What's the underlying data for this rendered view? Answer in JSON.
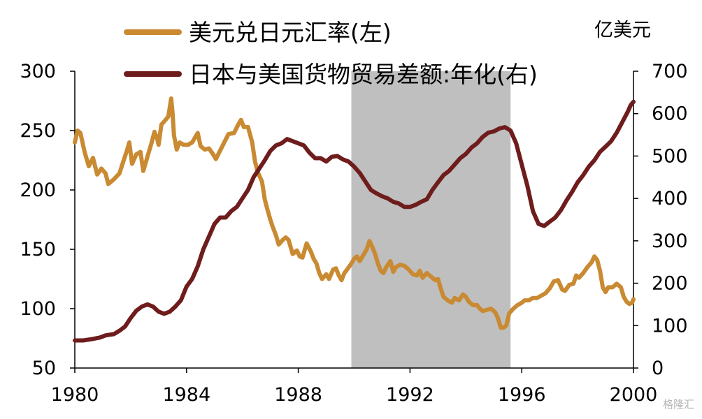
{
  "chart_data": {
    "type": "line",
    "title": "",
    "xlabel": "",
    "xlim": [
      1980,
      2000
    ],
    "x_ticks": [
      "1980",
      "1984",
      "1988",
      "1992",
      "1996",
      "2000"
    ],
    "left_axis": {
      "label": "",
      "ylim": [
        50,
        300
      ],
      "ticks": [
        "300",
        "250",
        "200",
        "150",
        "100",
        "50"
      ]
    },
    "right_axis": {
      "label": "亿美元",
      "ylim": [
        0,
        700
      ],
      "ticks": [
        "700",
        "600",
        "500",
        "400",
        "300",
        "200",
        "100",
        "0"
      ]
    },
    "grid": false,
    "legend_position": "top",
    "shaded_region": {
      "x_start": 1989.9,
      "x_end": 1995.6,
      "color": "#bfbfbf"
    },
    "series": [
      {
        "name": "美元兑日元汇率(左)",
        "axis": "left",
        "color": "#c98a32",
        "points": [
          [
            1980.0,
            240
          ],
          [
            1980.1,
            250
          ],
          [
            1980.2,
            248
          ],
          [
            1980.35,
            232
          ],
          [
            1980.5,
            220
          ],
          [
            1980.65,
            227
          ],
          [
            1980.8,
            213
          ],
          [
            1980.95,
            218
          ],
          [
            1981.1,
            214
          ],
          [
            1981.2,
            205
          ],
          [
            1981.4,
            209
          ],
          [
            1981.6,
            214
          ],
          [
            1981.75,
            225
          ],
          [
            1981.85,
            232
          ],
          [
            1981.95,
            240
          ],
          [
            1982.05,
            222
          ],
          [
            1982.2,
            230
          ],
          [
            1982.35,
            232
          ],
          [
            1982.45,
            216
          ],
          [
            1982.55,
            224
          ],
          [
            1982.75,
            240
          ],
          [
            1982.85,
            249
          ],
          [
            1982.95,
            243
          ],
          [
            1983.0,
            238
          ],
          [
            1983.1,
            255
          ],
          [
            1983.25,
            259
          ],
          [
            1983.35,
            262
          ],
          [
            1983.45,
            277
          ],
          [
            1983.5,
            265
          ],
          [
            1983.55,
            246
          ],
          [
            1983.65,
            234
          ],
          [
            1983.75,
            240
          ],
          [
            1983.9,
            238
          ],
          [
            1984.05,
            238
          ],
          [
            1984.2,
            240
          ],
          [
            1984.4,
            248
          ],
          [
            1984.5,
            237
          ],
          [
            1984.65,
            234
          ],
          [
            1984.8,
            235
          ],
          [
            1984.95,
            230
          ],
          [
            1985.05,
            226
          ],
          [
            1985.2,
            233
          ],
          [
            1985.35,
            240
          ],
          [
            1985.5,
            247
          ],
          [
            1985.7,
            248
          ],
          [
            1985.85,
            255
          ],
          [
            1985.95,
            259
          ],
          [
            1986.05,
            253
          ],
          [
            1986.2,
            253
          ],
          [
            1986.35,
            240
          ],
          [
            1986.45,
            224
          ],
          [
            1986.55,
            215
          ],
          [
            1986.7,
            207
          ],
          [
            1986.8,
            192
          ],
          [
            1986.9,
            183
          ],
          [
            1987.0,
            175
          ],
          [
            1987.1,
            168
          ],
          [
            1987.2,
            162
          ],
          [
            1987.3,
            154
          ],
          [
            1987.45,
            158
          ],
          [
            1987.55,
            160
          ],
          [
            1987.65,
            158
          ],
          [
            1987.8,
            146
          ],
          [
            1987.95,
            149
          ],
          [
            1988.05,
            144
          ],
          [
            1988.15,
            143
          ],
          [
            1988.3,
            155
          ],
          [
            1988.45,
            148
          ],
          [
            1988.55,
            142
          ],
          [
            1988.65,
            138
          ],
          [
            1988.75,
            130
          ],
          [
            1988.85,
            125
          ],
          [
            1989.0,
            129
          ],
          [
            1989.1,
            125
          ],
          [
            1989.25,
            133
          ],
          [
            1989.35,
            134
          ],
          [
            1989.45,
            128
          ],
          [
            1989.55,
            124
          ],
          [
            1989.65,
            130
          ],
          [
            1989.75,
            133
          ],
          [
            1989.9,
            138
          ],
          [
            1990.0,
            142
          ],
          [
            1990.1,
            144
          ],
          [
            1990.2,
            140
          ],
          [
            1990.35,
            146
          ],
          [
            1990.45,
            150
          ],
          [
            1990.55,
            157
          ],
          [
            1990.65,
            152
          ],
          [
            1990.75,
            146
          ],
          [
            1990.85,
            138
          ],
          [
            1990.95,
            132
          ],
          [
            1991.05,
            130
          ],
          [
            1991.15,
            135
          ],
          [
            1991.3,
            140
          ],
          [
            1991.4,
            131
          ],
          [
            1991.5,
            135
          ],
          [
            1991.65,
            137
          ],
          [
            1991.8,
            136
          ],
          [
            1991.95,
            133
          ],
          [
            1992.1,
            129
          ],
          [
            1992.25,
            128
          ],
          [
            1992.35,
            132
          ],
          [
            1992.45,
            126
          ],
          [
            1992.6,
            130
          ],
          [
            1992.75,
            127
          ],
          [
            1992.9,
            124
          ],
          [
            1993.0,
            125
          ],
          [
            1993.1,
            117
          ],
          [
            1993.2,
            110
          ],
          [
            1993.35,
            107
          ],
          [
            1993.5,
            105
          ],
          [
            1993.6,
            109
          ],
          [
            1993.75,
            107
          ],
          [
            1993.9,
            112
          ],
          [
            1994.0,
            110
          ],
          [
            1994.1,
            106
          ],
          [
            1994.25,
            103
          ],
          [
            1994.4,
            103
          ],
          [
            1994.5,
            100
          ],
          [
            1994.6,
            98
          ],
          [
            1994.75,
            99
          ],
          [
            1994.9,
            100
          ],
          [
            1995.05,
            97
          ],
          [
            1995.15,
            92
          ],
          [
            1995.25,
            84
          ],
          [
            1995.35,
            84
          ],
          [
            1995.45,
            86
          ],
          [
            1995.55,
            96
          ],
          [
            1995.7,
            100
          ],
          [
            1995.85,
            103
          ],
          [
            1996.0,
            105
          ],
          [
            1996.1,
            107
          ],
          [
            1996.25,
            107
          ],
          [
            1996.4,
            109
          ],
          [
            1996.55,
            109
          ],
          [
            1996.7,
            111
          ],
          [
            1996.85,
            113
          ],
          [
            1997.0,
            117
          ],
          [
            1997.15,
            123
          ],
          [
            1997.3,
            124
          ],
          [
            1997.45,
            116
          ],
          [
            1997.55,
            115
          ],
          [
            1997.7,
            120
          ],
          [
            1997.85,
            121
          ],
          [
            1997.95,
            128
          ],
          [
            1998.05,
            126
          ],
          [
            1998.2,
            130
          ],
          [
            1998.35,
            135
          ],
          [
            1998.5,
            139
          ],
          [
            1998.6,
            144
          ],
          [
            1998.7,
            141
          ],
          [
            1998.8,
            132
          ],
          [
            1998.9,
            118
          ],
          [
            1999.0,
            114
          ],
          [
            1999.1,
            118
          ],
          [
            1999.25,
            118
          ],
          [
            1999.4,
            121
          ],
          [
            1999.55,
            118
          ],
          [
            1999.65,
            110
          ],
          [
            1999.75,
            106
          ],
          [
            1999.85,
            104
          ],
          [
            1999.95,
            105
          ],
          [
            2000.0,
            108
          ]
        ]
      },
      {
        "name": "日本与美国货物贸易差额:年化(右)",
        "axis": "right",
        "color": "#6e1c1c",
        "points": [
          [
            1980.0,
            65
          ],
          [
            1980.3,
            65
          ],
          [
            1980.6,
            68
          ],
          [
            1980.9,
            72
          ],
          [
            1981.1,
            77
          ],
          [
            1981.4,
            80
          ],
          [
            1981.6,
            88
          ],
          [
            1981.8,
            98
          ],
          [
            1982.0,
            118
          ],
          [
            1982.2,
            135
          ],
          [
            1982.4,
            145
          ],
          [
            1982.6,
            150
          ],
          [
            1982.8,
            145
          ],
          [
            1983.0,
            133
          ],
          [
            1983.2,
            128
          ],
          [
            1983.4,
            133
          ],
          [
            1983.6,
            145
          ],
          [
            1983.8,
            160
          ],
          [
            1984.0,
            192
          ],
          [
            1984.2,
            210
          ],
          [
            1984.4,
            240
          ],
          [
            1984.6,
            280
          ],
          [
            1984.8,
            310
          ],
          [
            1985.0,
            340
          ],
          [
            1985.2,
            355
          ],
          [
            1985.4,
            355
          ],
          [
            1985.6,
            370
          ],
          [
            1985.8,
            380
          ],
          [
            1986.0,
            400
          ],
          [
            1986.2,
            420
          ],
          [
            1986.4,
            450
          ],
          [
            1986.6,
            470
          ],
          [
            1986.8,
            490
          ],
          [
            1987.0,
            512
          ],
          [
            1987.2,
            525
          ],
          [
            1987.4,
            530
          ],
          [
            1987.6,
            540
          ],
          [
            1987.8,
            535
          ],
          [
            1988.0,
            530
          ],
          [
            1988.2,
            525
          ],
          [
            1988.4,
            508
          ],
          [
            1988.6,
            495
          ],
          [
            1988.8,
            495
          ],
          [
            1989.0,
            487
          ],
          [
            1989.2,
            498
          ],
          [
            1989.4,
            500
          ],
          [
            1989.6,
            492
          ],
          [
            1989.8,
            487
          ],
          [
            1990.0,
            475
          ],
          [
            1990.2,
            460
          ],
          [
            1990.4,
            440
          ],
          [
            1990.6,
            420
          ],
          [
            1990.8,
            412
          ],
          [
            1991.0,
            405
          ],
          [
            1991.2,
            400
          ],
          [
            1991.4,
            392
          ],
          [
            1991.6,
            388
          ],
          [
            1991.8,
            380
          ],
          [
            1992.0,
            380
          ],
          [
            1992.2,
            385
          ],
          [
            1992.4,
            392
          ],
          [
            1992.6,
            398
          ],
          [
            1992.8,
            420
          ],
          [
            1993.0,
            438
          ],
          [
            1993.2,
            455
          ],
          [
            1993.4,
            465
          ],
          [
            1993.6,
            480
          ],
          [
            1993.8,
            495
          ],
          [
            1994.0,
            505
          ],
          [
            1994.2,
            520
          ],
          [
            1994.4,
            530
          ],
          [
            1994.6,
            545
          ],
          [
            1994.8,
            555
          ],
          [
            1995.0,
            558
          ],
          [
            1995.2,
            565
          ],
          [
            1995.4,
            568
          ],
          [
            1995.6,
            560
          ],
          [
            1995.8,
            530
          ],
          [
            1996.0,
            480
          ],
          [
            1996.2,
            430
          ],
          [
            1996.4,
            370
          ],
          [
            1996.6,
            340
          ],
          [
            1996.8,
            335
          ],
          [
            1997.0,
            345
          ],
          [
            1997.2,
            355
          ],
          [
            1997.4,
            372
          ],
          [
            1997.6,
            395
          ],
          [
            1997.8,
            415
          ],
          [
            1998.0,
            438
          ],
          [
            1998.2,
            455
          ],
          [
            1998.4,
            475
          ],
          [
            1998.6,
            490
          ],
          [
            1998.8,
            510
          ],
          [
            1999.0,
            522
          ],
          [
            1999.2,
            535
          ],
          [
            1999.4,
            555
          ],
          [
            1999.6,
            580
          ],
          [
            1999.8,
            605
          ],
          [
            1999.9,
            620
          ],
          [
            2000.0,
            628
          ]
        ]
      }
    ]
  },
  "watermark": "格隆汇"
}
